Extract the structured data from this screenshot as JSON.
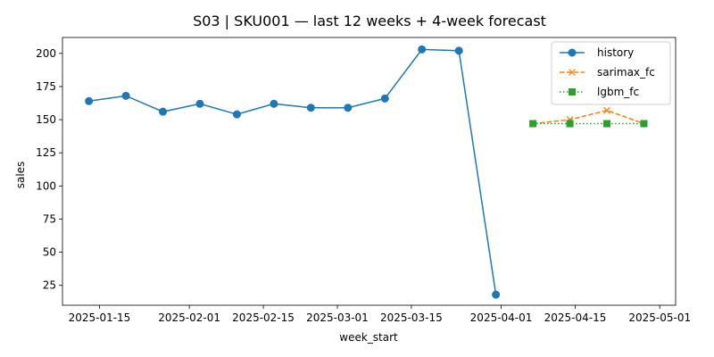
{
  "chart_data": {
    "type": "line",
    "title": "S03 | SKU001 — last 12 weeks + 4-week forecast",
    "xlabel": "week_start",
    "ylabel": "sales",
    "xlim": [
      "2025-01-08",
      "2025-05-04"
    ],
    "ylim": [
      10,
      212
    ],
    "x_ticks": [
      "2025-01-15",
      "2025-02-01",
      "2025-02-15",
      "2025-03-01",
      "2025-03-15",
      "2025-04-01",
      "2025-04-15",
      "2025-05-01"
    ],
    "y_ticks": [
      25,
      50,
      75,
      100,
      125,
      150,
      175,
      200
    ],
    "grid": false,
    "legend_position": "top-right",
    "series": [
      {
        "name": "history",
        "color": "#1f77b4",
        "line_style": "solid",
        "marker": "circle",
        "points": [
          {
            "x": "2025-01-13",
            "y": 164
          },
          {
            "x": "2025-01-20",
            "y": 168
          },
          {
            "x": "2025-01-27",
            "y": 156
          },
          {
            "x": "2025-02-03",
            "y": 162
          },
          {
            "x": "2025-02-10",
            "y": 154
          },
          {
            "x": "2025-02-17",
            "y": 162
          },
          {
            "x": "2025-02-24",
            "y": 159
          },
          {
            "x": "2025-03-03",
            "y": 159
          },
          {
            "x": "2025-03-10",
            "y": 166
          },
          {
            "x": "2025-03-17",
            "y": 203
          },
          {
            "x": "2025-03-24",
            "y": 202
          },
          {
            "x": "2025-03-31",
            "y": 18
          }
        ]
      },
      {
        "name": "sarimax_fc",
        "color": "#ff7f0e",
        "line_style": "dashed",
        "marker": "x",
        "points": [
          {
            "x": "2025-04-07",
            "y": 147
          },
          {
            "x": "2025-04-14",
            "y": 150
          },
          {
            "x": "2025-04-21",
            "y": 157
          },
          {
            "x": "2025-04-28",
            "y": 147
          }
        ]
      },
      {
        "name": "lgbm_fc",
        "color": "#2ca02c",
        "line_style": "dotted",
        "marker": "square",
        "points": [
          {
            "x": "2025-04-07",
            "y": 147
          },
          {
            "x": "2025-04-14",
            "y": 147
          },
          {
            "x": "2025-04-21",
            "y": 147
          },
          {
            "x": "2025-04-28",
            "y": 147
          }
        ]
      }
    ]
  }
}
